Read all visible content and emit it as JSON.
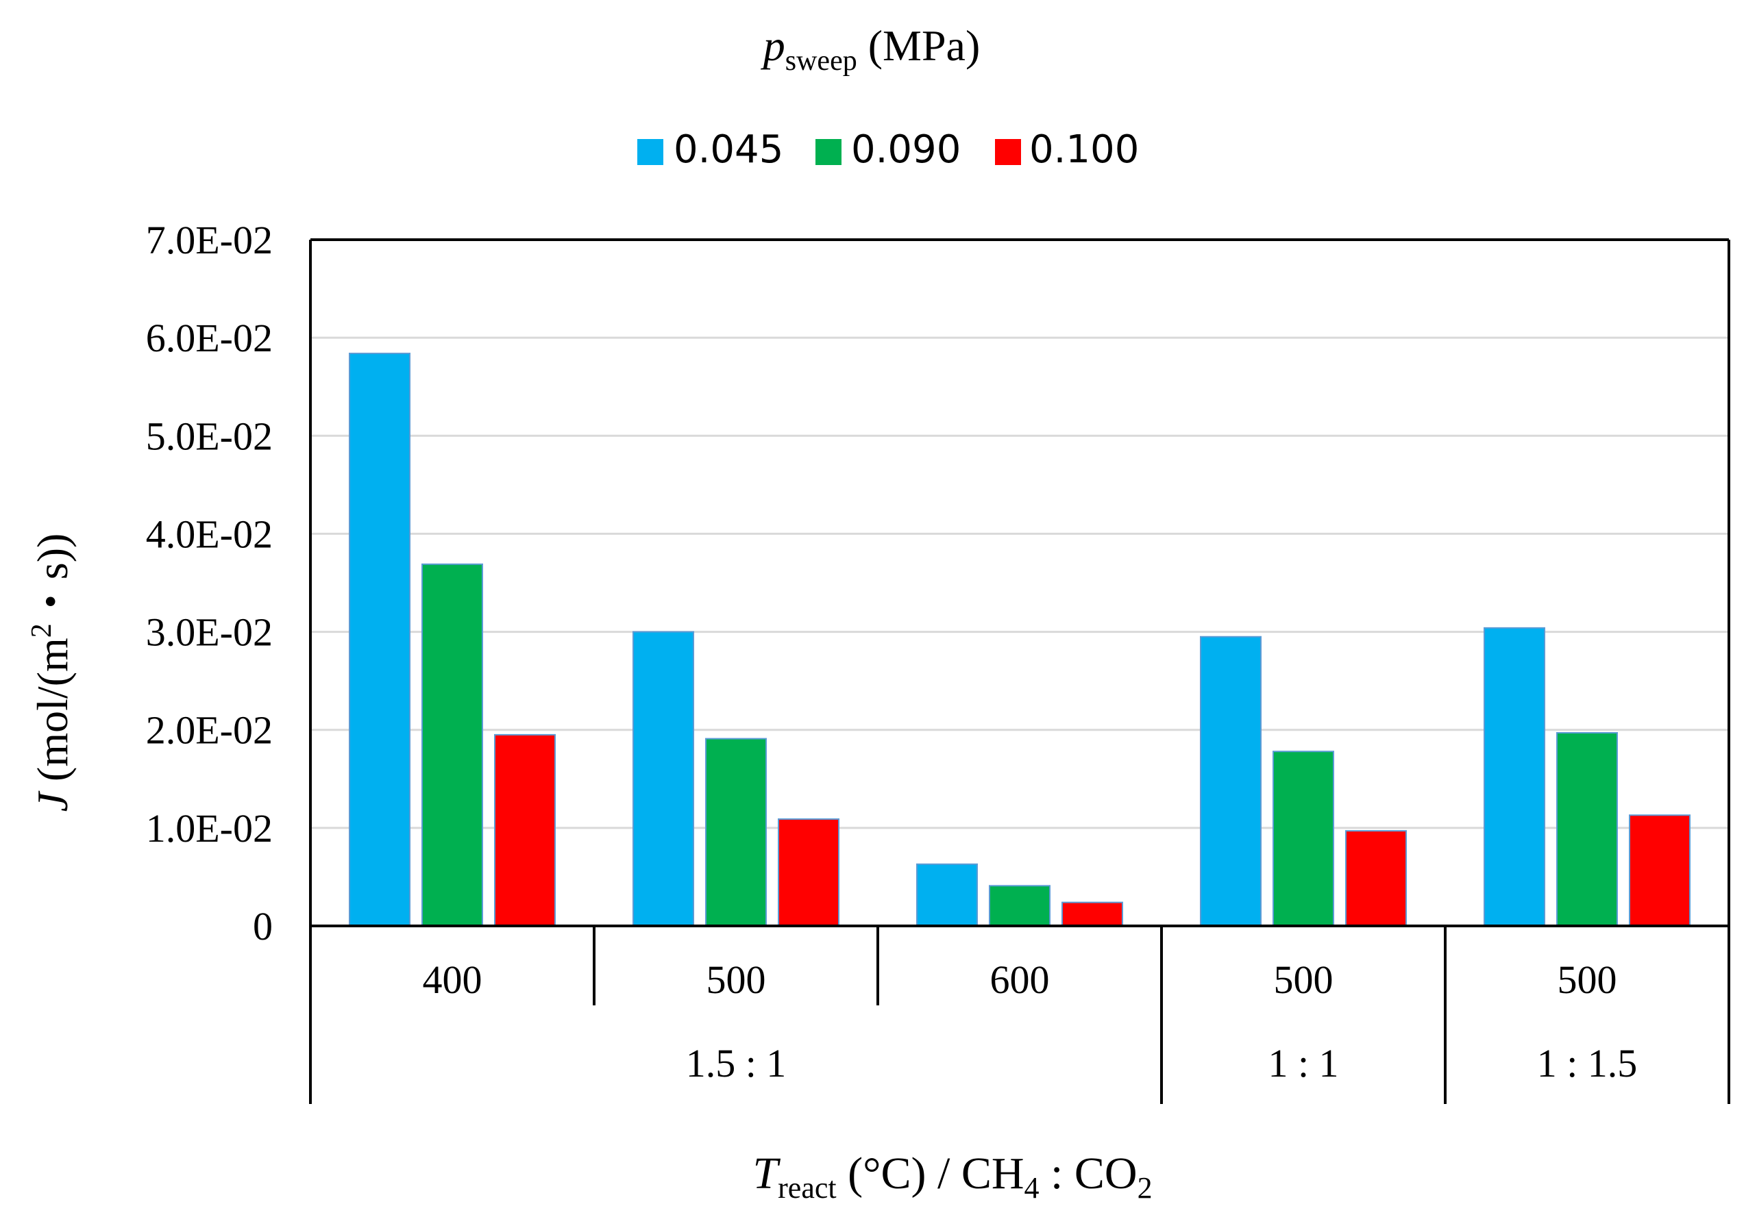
{
  "chart_data": {
    "type": "bar",
    "legend_title": {
      "var": "p",
      "sub": "sweep",
      "unit": " (MPa)"
    },
    "legend_position": "top-center",
    "series": [
      {
        "name": "0.045",
        "color": "#00B0F0",
        "values": [
          0.0584,
          0.03,
          0.0063,
          0.0295,
          0.0304
        ]
      },
      {
        "name": "0.090",
        "color": "#00B050",
        "values": [
          0.0369,
          0.0191,
          0.0041,
          0.0178,
          0.0197
        ]
      },
      {
        "name": "0.100",
        "color": "#FF0000",
        "values": [
          0.0195,
          0.0109,
          0.0024,
          0.0097,
          0.0113
        ]
      }
    ],
    "categories": [
      "400",
      "500",
      "600",
      "500",
      "500"
    ],
    "category_groups": [
      {
        "label": "1.5 : 1",
        "span": 3
      },
      {
        "label": "1 : 1",
        "span": 1
      },
      {
        "label": "1 : 1.5",
        "span": 1
      }
    ],
    "ylim": [
      0,
      0.07
    ],
    "y_ticks": [
      {
        "value": 0,
        "label": "0"
      },
      {
        "value": 0.01,
        "label": "1.0E-02"
      },
      {
        "value": 0.02,
        "label": "2.0E-02"
      },
      {
        "value": 0.03,
        "label": "3.0E-02"
      },
      {
        "value": 0.04,
        "label": "4.0E-02"
      },
      {
        "value": 0.05,
        "label": "5.0E-02"
      },
      {
        "value": 0.06,
        "label": "6.0E-02"
      },
      {
        "value": 0.07,
        "label": "7.0E-02"
      }
    ],
    "ylabel": {
      "var": "J",
      "pre": " (mol/(m",
      "sup": "2",
      "post": "・s))"
    },
    "xlabel": {
      "var": "T",
      "sub": "react",
      "mid": " (°C) / CH",
      "sub2": "4",
      "tail": " : CO",
      "sub3": "2"
    },
    "grid": true
  }
}
